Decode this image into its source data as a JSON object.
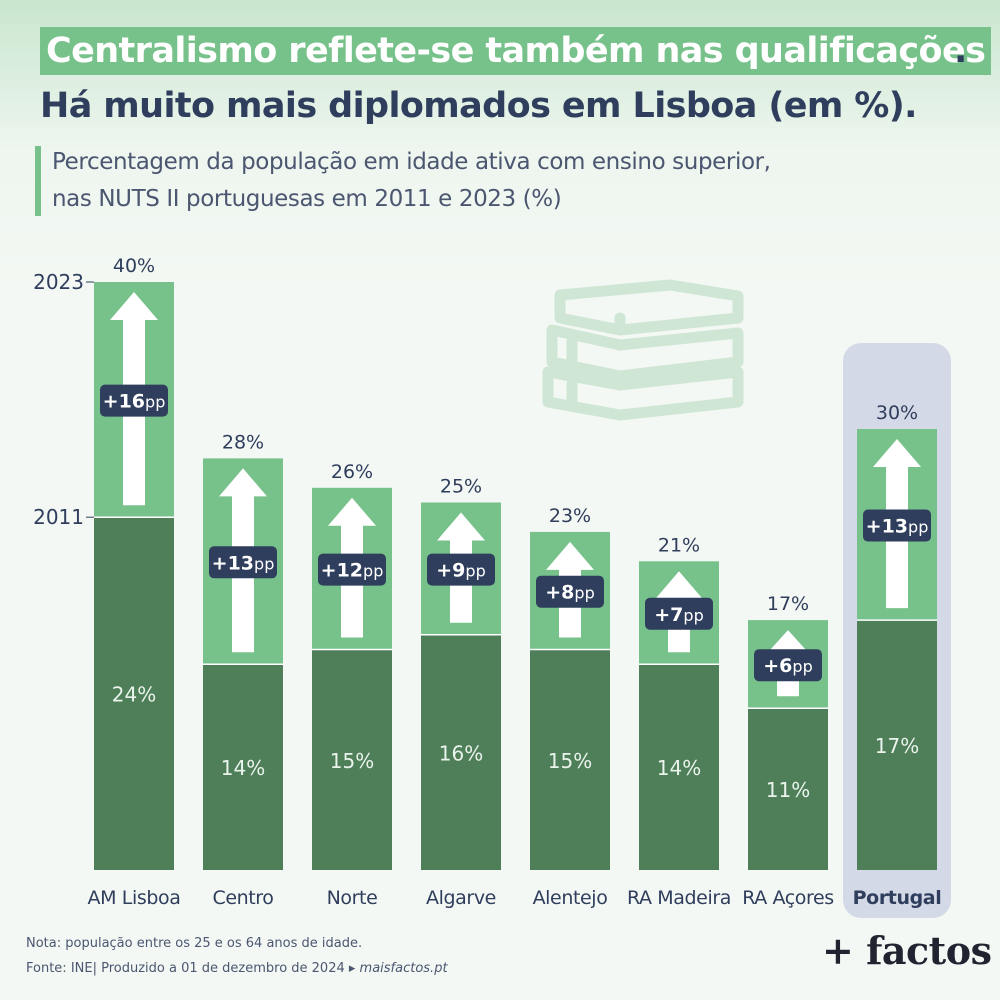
{
  "header": {
    "title_line1": "Centralismo reflete-se também nas qualificações",
    "title_line1_end": ".",
    "title_line2": "Há muito mais diplomados em Lisboa (em %).",
    "subtitle_line1": "Percentagem da população em idade ativa com ensino superior,",
    "subtitle_line2": "nas NUTS II portuguesas em 2011 e 2023 (%)"
  },
  "chart_data": {
    "type": "bar",
    "categories": [
      "AM Lisboa",
      "Centro",
      "Norte",
      "Algarve",
      "Alentejo",
      "RA Madeira",
      "RA Açores",
      "Portugal"
    ],
    "series": [
      {
        "name": "2011",
        "values": [
          24,
          14,
          15,
          16,
          15,
          14,
          11,
          17
        ]
      },
      {
        "name": "2023",
        "values": [
          40,
          28,
          26,
          25,
          23,
          21,
          17,
          30
        ]
      }
    ],
    "values_2011_labels": [
      "24%",
      "14%",
      "15%",
      "16%",
      "15%",
      "14%",
      "11%",
      "17%"
    ],
    "values_2023_labels": [
      "40%",
      "28%",
      "26%",
      "25%",
      "23%",
      "21%",
      "17%",
      "30%"
    ],
    "change_labels": [
      "+16",
      "+13",
      "+12",
      "+9",
      "+8",
      "+7",
      "+6",
      "+13"
    ],
    "change_unit": "pp",
    "reference_labels": {
      "y2023": "2023",
      "y2011": "2011"
    },
    "highlight_category": "Portugal",
    "ylim": [
      0,
      40
    ],
    "colors": {
      "bar_2011": "#4e7f59",
      "bar_increase": "#77c18b",
      "arrow": "#ffffff",
      "badge": "#2f3e5c",
      "highlight_background": "#d3d9e6",
      "text": "#2f3e5c"
    },
    "decoration_icon": "books-icon"
  },
  "footer": {
    "note": "Nota: população entre os 25 e os 64 anos de idade.",
    "source": "Fonte: INE|  Produzido a 01 de dezembro de 2024 ▸ ",
    "source_site": "maisfactos.pt",
    "brand": "+ factos"
  }
}
